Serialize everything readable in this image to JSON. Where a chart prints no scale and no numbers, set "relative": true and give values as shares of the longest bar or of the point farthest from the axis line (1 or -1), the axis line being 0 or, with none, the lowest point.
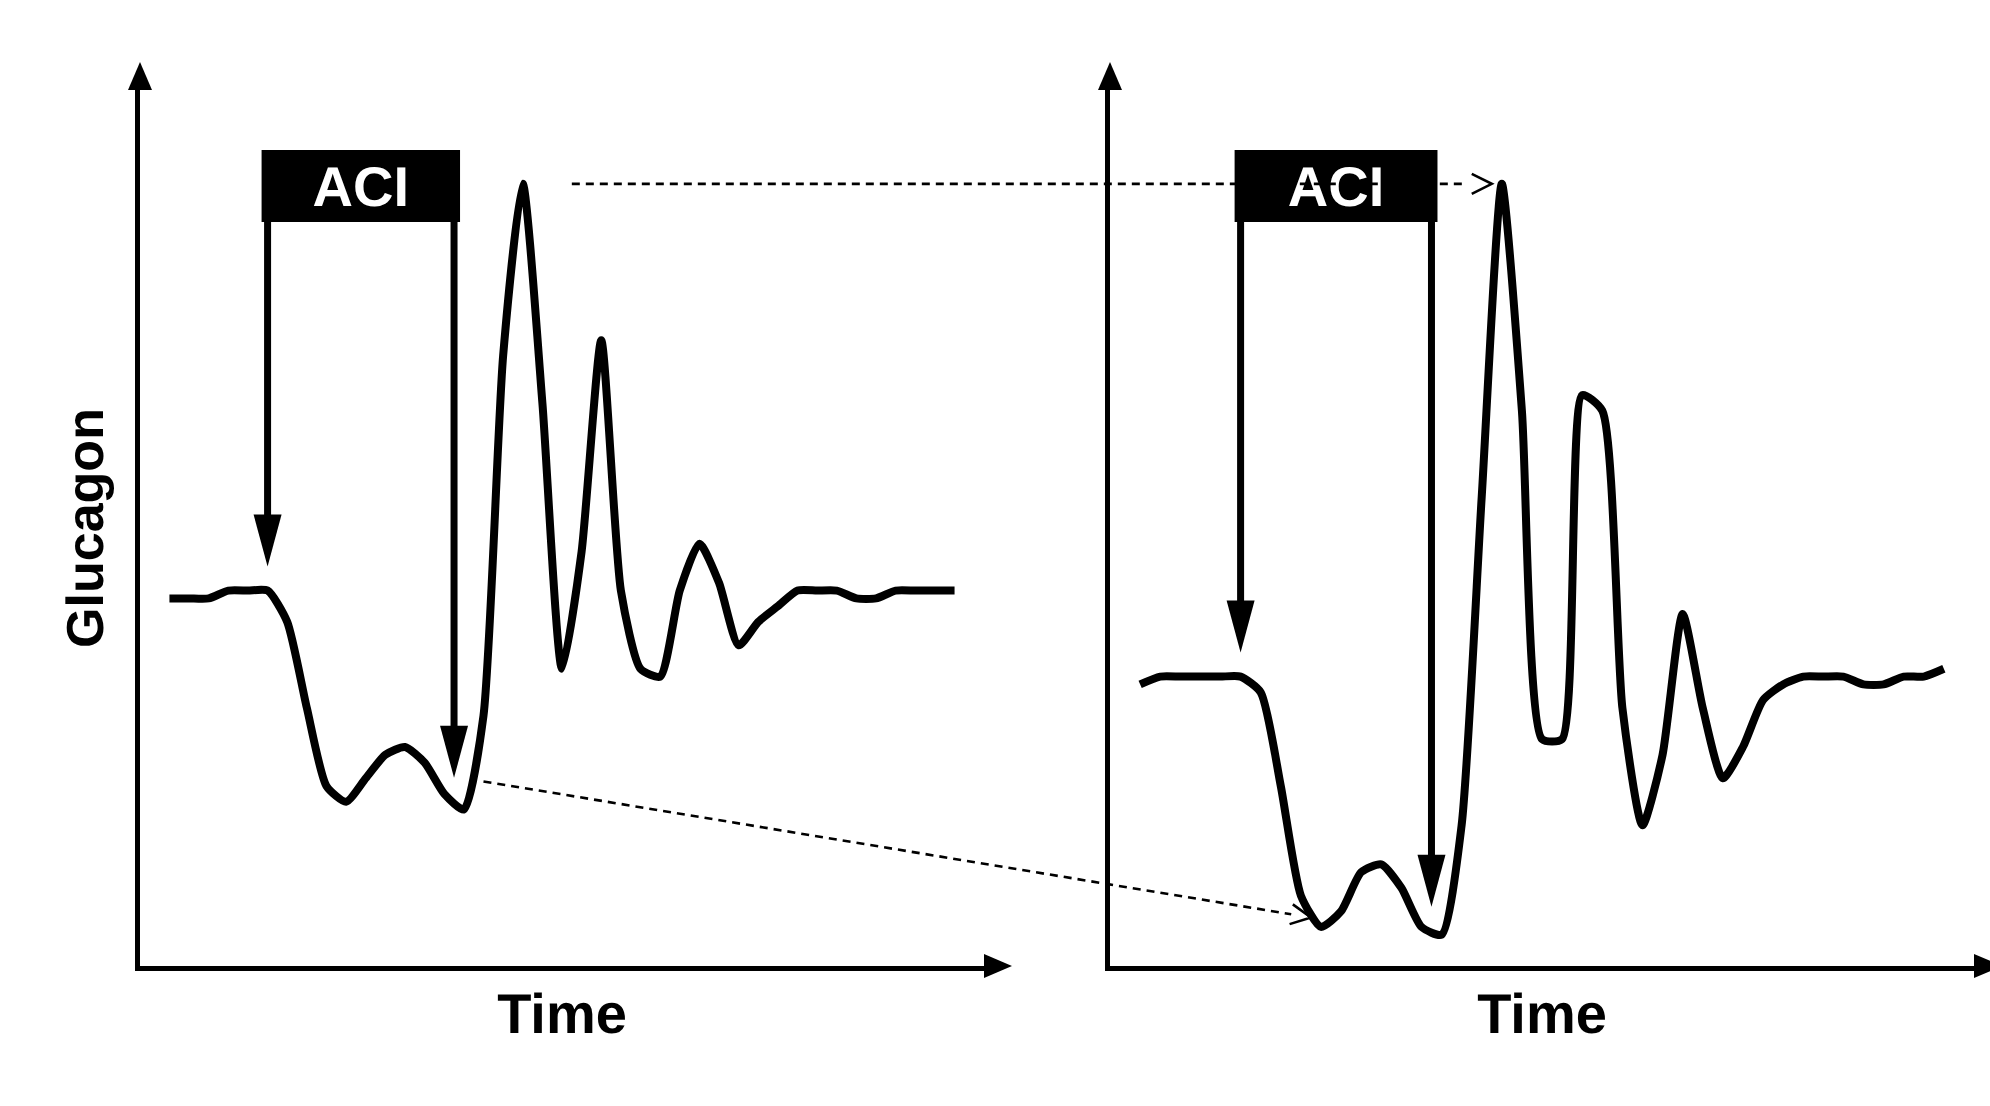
{
  "chart_data": [
    {
      "type": "line",
      "relative": true,
      "xlabel": "Time",
      "ylabel": "Glucagon",
      "annotations": [
        "ACI"
      ],
      "categories": [
        null,
        null,
        null,
        null,
        null,
        null,
        null,
        null,
        null,
        null,
        null,
        null,
        null,
        null,
        null,
        null,
        null,
        null,
        null,
        null,
        null,
        null,
        null,
        null,
        null,
        null,
        null,
        null,
        null,
        null,
        null,
        null,
        null,
        null,
        null,
        null,
        null,
        null,
        null,
        null,
        null
      ],
      "series": [
        {
          "color": "#000000",
          "values": [
            0.47,
            0.47,
            0.47,
            0.48,
            0.48,
            0.48,
            0.44,
            0.33,
            0.23,
            0.21,
            0.24,
            0.27,
            0.28,
            0.26,
            0.22,
            0.2,
            0.32,
            0.78,
            1,
            0.72,
            0.38,
            0.53,
            0.8,
            0.48,
            0.38,
            0.37,
            0.48,
            0.54,
            0.49,
            0.41,
            0.44,
            0.46,
            0.48,
            0.48,
            0.48,
            0.47,
            0.47,
            0.48,
            0.48,
            0.48,
            0.48
          ]
        }
      ]
    },
    {
      "type": "line",
      "relative": true,
      "xlabel": "Time",
      "annotations": [
        "ACI"
      ],
      "categories": [
        null,
        null,
        null,
        null,
        null,
        null,
        null,
        null,
        null,
        null,
        null,
        null,
        null,
        null,
        null,
        null,
        null,
        null,
        null,
        null,
        null,
        null,
        null,
        null,
        null,
        null,
        null,
        null,
        null,
        null,
        null,
        null,
        null,
        null,
        null,
        null,
        null,
        null,
        null,
        null,
        null
      ],
      "series": [
        {
          "color": "#000000",
          "values": [
            0.36,
            0.37,
            0.37,
            0.37,
            0.37,
            0.37,
            0.35,
            0.23,
            0.09,
            0.05,
            0.07,
            0.12,
            0.13,
            0.1,
            0.05,
            0.04,
            0.18,
            0.6,
            1,
            0.71,
            0.29,
            0.29,
            0.73,
            0.71,
            0.33,
            0.18,
            0.27,
            0.45,
            0.33,
            0.24,
            0.28,
            0.34,
            0.36,
            0.37,
            0.37,
            0.37,
            0.36,
            0.36,
            0.37,
            0.37,
            0.38
          ]
        }
      ]
    }
  ]
}
